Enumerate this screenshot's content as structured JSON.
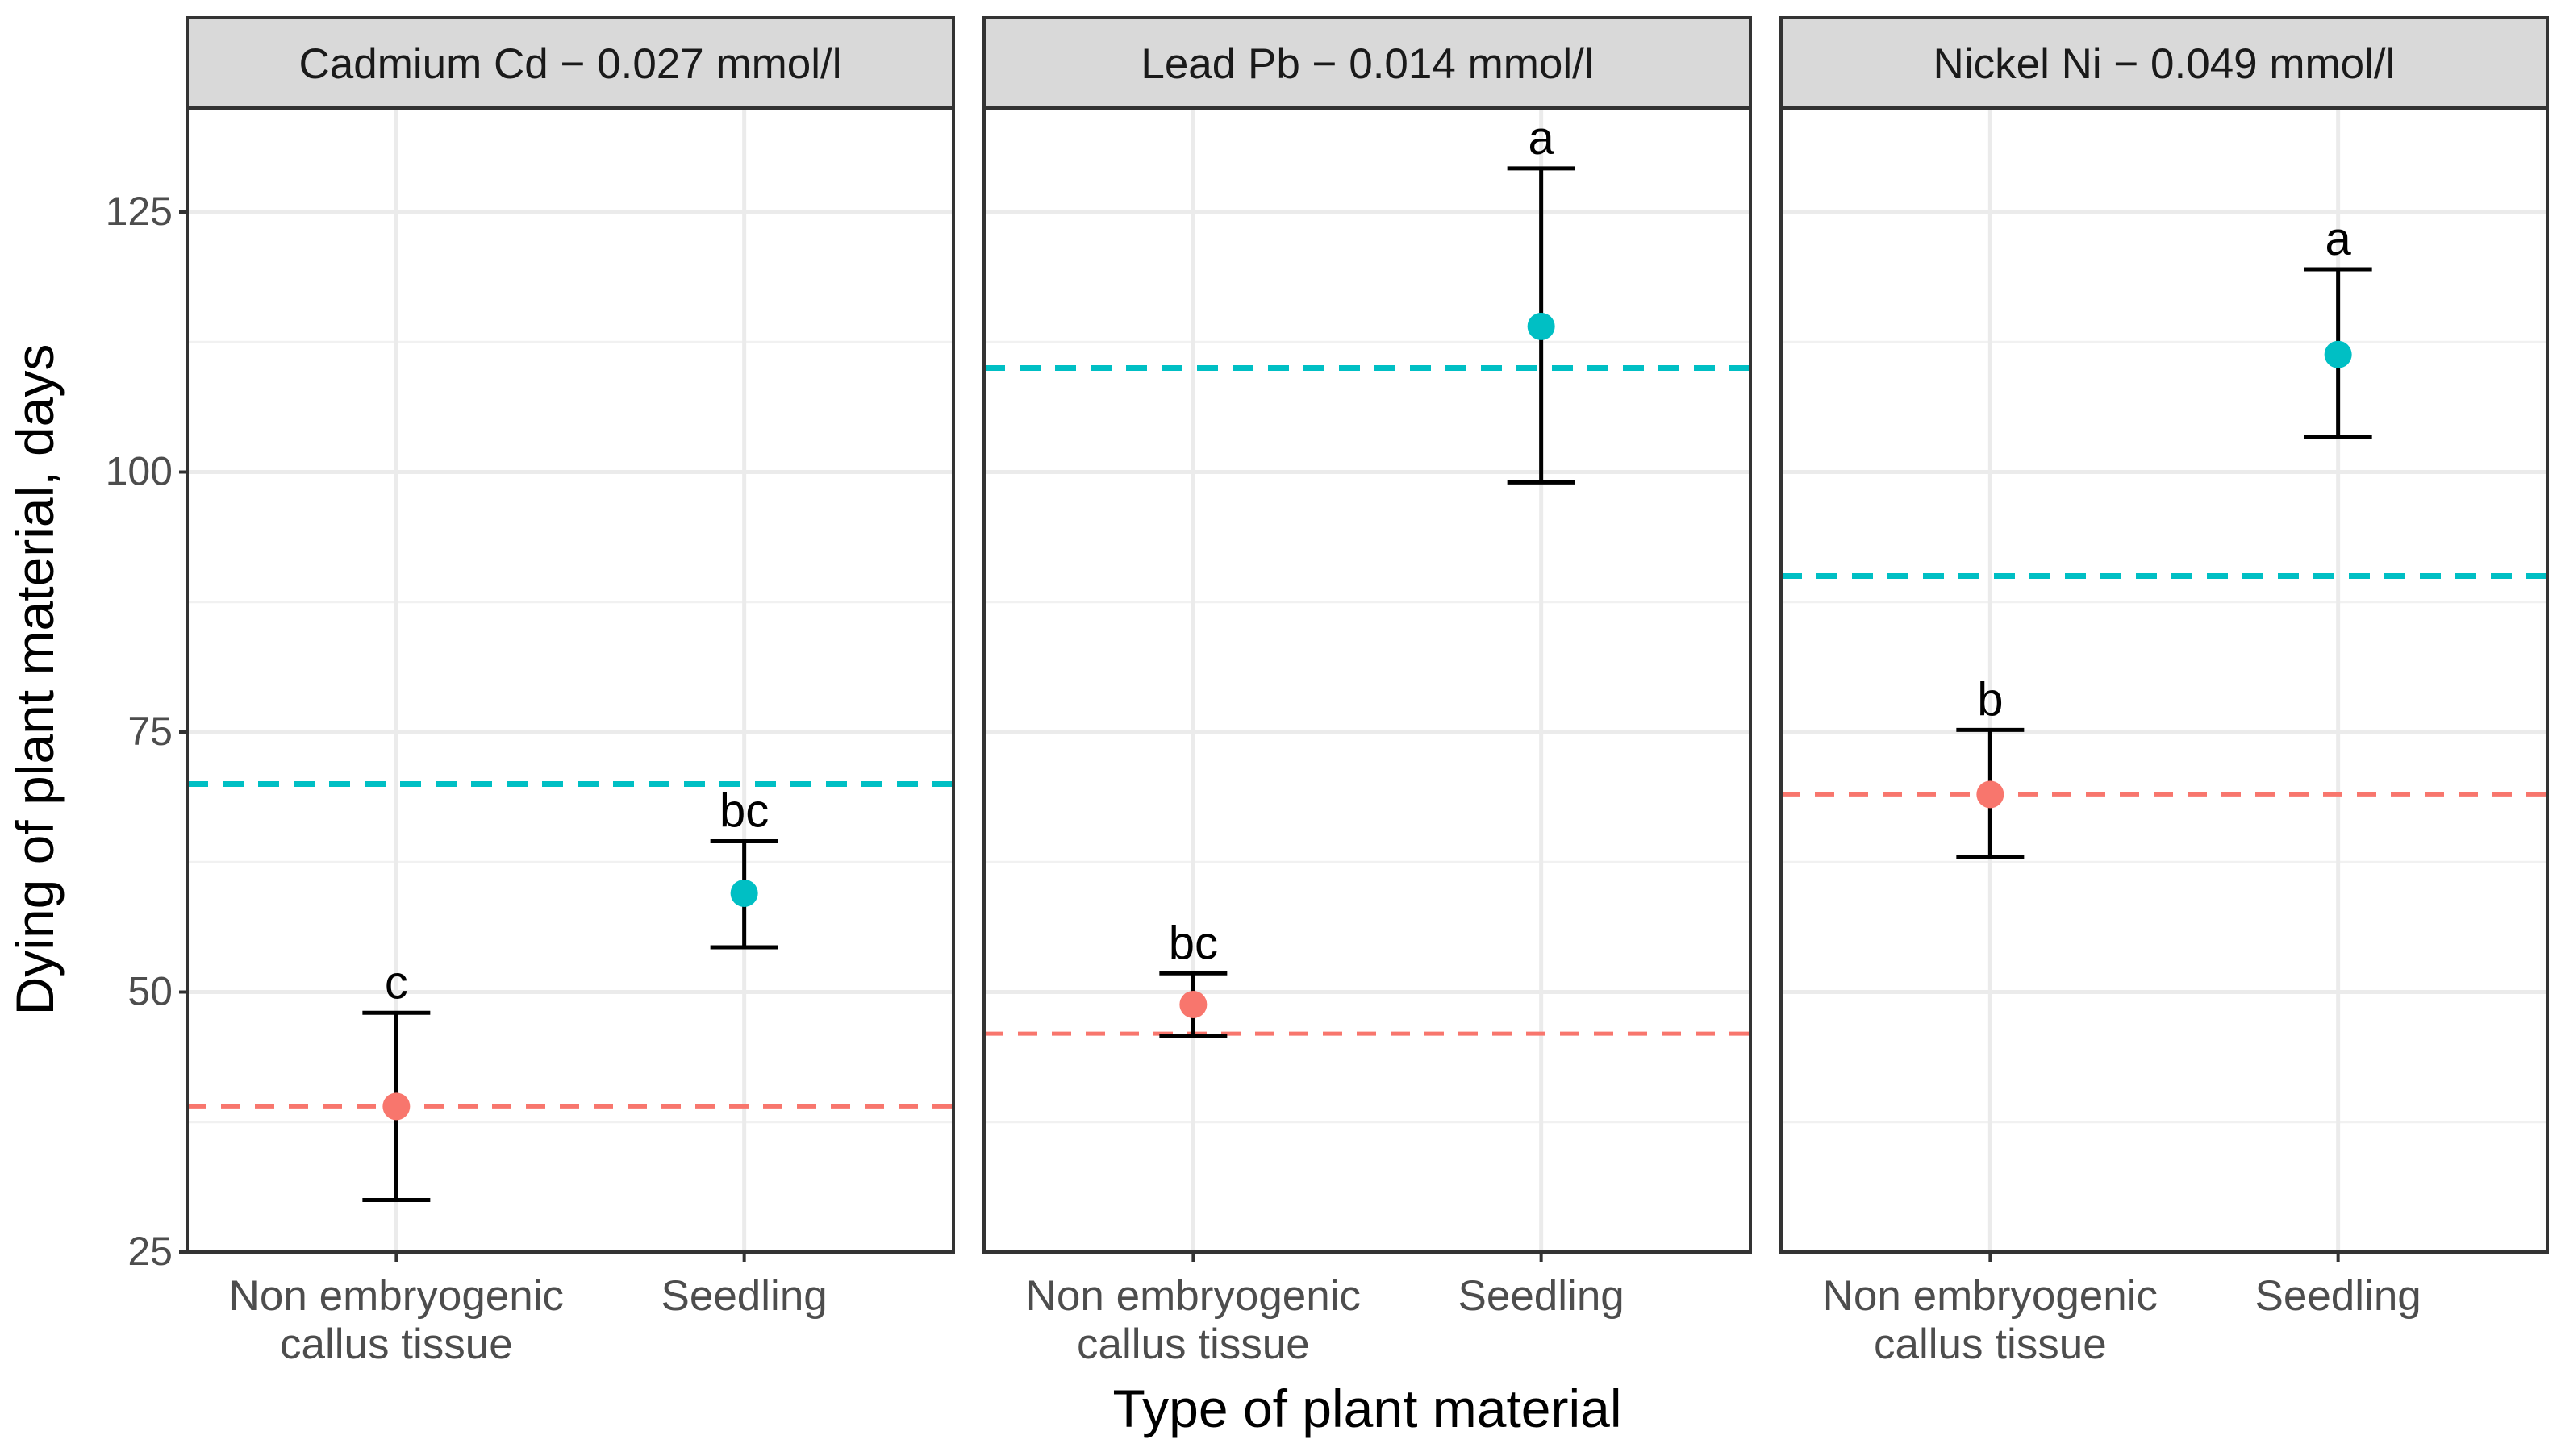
{
  "chart_data": {
    "type": "scatter",
    "subtype": "point-with-error-bars, faceted",
    "ylabel": "Dying of plant material, days",
    "xlabel": "Type of plant material",
    "ylim": [
      25,
      135
    ],
    "yticks": [
      25,
      50,
      75,
      100,
      125
    ],
    "grid": true,
    "categories": [
      {
        "line1": "Non embryogenic",
        "line2": "callus tissue"
      },
      {
        "line1": "Seedling",
        "line2": ""
      }
    ],
    "colors": {
      "callus": "#F8766D",
      "seedling": "#00BFC4"
    },
    "panels": [
      {
        "title": "Cadmium Cd − 0.027 mmol/l",
        "points": [
          {
            "category": 0,
            "group": "callus",
            "mean": 39,
            "lower": 30,
            "upper": 48,
            "label": "c"
          },
          {
            "category": 1,
            "group": "seedling",
            "mean": 59.5,
            "lower": 54.3,
            "upper": 64.5,
            "label": "bc"
          }
        ],
        "refs": [
          {
            "group": "seedling",
            "value": 70
          },
          {
            "group": "callus",
            "value": 39
          }
        ]
      },
      {
        "title": "Lead Pb − 0.014 mmol/l",
        "points": [
          {
            "category": 0,
            "group": "callus",
            "mean": 48.8,
            "lower": 45.8,
            "upper": 51.8,
            "label": "bc"
          },
          {
            "category": 1,
            "group": "seedling",
            "mean": 114,
            "lower": 99,
            "upper": 129.2,
            "label": "a"
          }
        ],
        "refs": [
          {
            "group": "seedling",
            "value": 110
          },
          {
            "group": "callus",
            "value": 46
          }
        ]
      },
      {
        "title": "Nickel Ni − 0.049 mmol/l",
        "points": [
          {
            "category": 0,
            "group": "callus",
            "mean": 69,
            "lower": 63,
            "upper": 75.2,
            "label": "b"
          },
          {
            "category": 1,
            "group": "seedling",
            "mean": 111.3,
            "lower": 103.4,
            "upper": 119.5,
            "label": "a"
          }
        ],
        "refs": [
          {
            "group": "seedling",
            "value": 90
          },
          {
            "group": "callus",
            "value": 69
          }
        ]
      }
    ]
  }
}
